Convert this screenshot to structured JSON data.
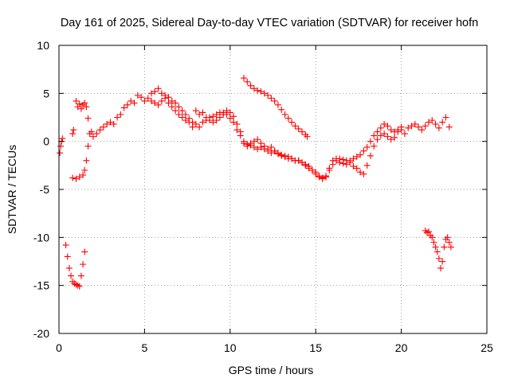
{
  "chart_data": {
    "type": "scatter",
    "title": "Day 161 of 2025, Sidereal Day-to-day VTEC variation (SDTVAR) for receiver hofn",
    "xlabel": "GPS time / hours",
    "ylabel": "SDTVAR / TECUs",
    "xlim": [
      0,
      25
    ],
    "ylim": [
      -20,
      10
    ],
    "x_ticks": [
      0,
      5,
      10,
      15,
      20,
      25
    ],
    "x_tick_labels": [
      "0",
      "5",
      "10",
      "15",
      "20",
      "25"
    ],
    "y_ticks": [
      -20,
      -15,
      -10,
      -5,
      0,
      5,
      10
    ],
    "y_tick_labels": [
      "-20",
      "-15",
      "-10",
      "-5",
      "0",
      "5",
      "10"
    ],
    "grid": true,
    "marker": "+",
    "color": "#ff0000",
    "series": [
      {
        "name": "early",
        "x": [
          0.05,
          0.1,
          0.15,
          0.2,
          0.8,
          0.85,
          1.0,
          1.1,
          1.2,
          1.3,
          1.4,
          1.5,
          1.6,
          1.7
        ],
        "y": [
          -1.2,
          -0.5,
          0.0,
          0.3,
          0.8,
          1.2,
          4.2,
          3.6,
          3.9,
          3.4,
          3.8,
          4.0,
          3.6,
          2.4
        ]
      },
      {
        "name": "dip1",
        "x": [
          0.4,
          0.5,
          0.6,
          0.7,
          0.8,
          0.9,
          1.0,
          1.1,
          1.2,
          1.3,
          1.4,
          1.5
        ],
        "y": [
          -10.8,
          -12.0,
          -13.2,
          -14.0,
          -14.6,
          -14.8,
          -14.9,
          -15.0,
          -15.1,
          -14.0,
          -12.8,
          -11.5
        ]
      },
      {
        "name": "rise1",
        "x": [
          0.8,
          1.0,
          1.2,
          1.4,
          1.5,
          1.6,
          1.7,
          1.8,
          1.9,
          2.0,
          2.2,
          2.4,
          2.6,
          2.8,
          3.0,
          3.2,
          3.4,
          3.6,
          3.8,
          4.0,
          4.2,
          4.4,
          4.6,
          4.8,
          5.0,
          5.2,
          5.4,
          5.6,
          5.8,
          6.0,
          6.2,
          6.4,
          6.6,
          6.8,
          7.0,
          7.2,
          7.4,
          7.6,
          7.8,
          8.0,
          8.2,
          8.4,
          8.6,
          8.8,
          9.0,
          9.2,
          9.4,
          9.6,
          9.8,
          10.0,
          10.2,
          10.4,
          10.6,
          10.8,
          11.0,
          11.2,
          11.4,
          11.6,
          11.8,
          12.0,
          12.2,
          12.4,
          12.6,
          12.8,
          13.0,
          13.2,
          13.4,
          13.6,
          13.8,
          14.0,
          14.2,
          14.4,
          14.6,
          14.8,
          15.0,
          15.2,
          15.4,
          15.6,
          15.8,
          16.0,
          16.2,
          16.4,
          16.6,
          16.8,
          17.0,
          17.2,
          17.4,
          17.6,
          17.8,
          18.0,
          18.2,
          18.4,
          18.6,
          18.8,
          19.0,
          19.2,
          19.4,
          19.6,
          19.8,
          20.0,
          20.2,
          20.4,
          20.6,
          20.8,
          21.0,
          21.2,
          21.4,
          21.6,
          21.8,
          22.0,
          22.2,
          22.4,
          22.6,
          22.8
        ],
        "y": [
          -3.8,
          -3.9,
          -3.7,
          -3.5,
          -3.0,
          -2.0,
          -0.5,
          0.8,
          1.0,
          0.5,
          0.8,
          1.2,
          1.5,
          1.8,
          2.0,
          1.8,
          2.5,
          2.8,
          3.5,
          3.8,
          4.2,
          4.0,
          4.8,
          4.6,
          4.2,
          4.5,
          5.0,
          5.2,
          5.5,
          5.0,
          4.8,
          4.6,
          4.2,
          4.0,
          3.6,
          3.2,
          2.8,
          2.4,
          2.0,
          3.2,
          2.8,
          3.0,
          2.5,
          2.2,
          2.0,
          2.2,
          2.5,
          2.8,
          3.2,
          3.0,
          2.6,
          1.8,
          1.0,
          0.0,
          -0.3,
          -0.2,
          0.0,
          0.2,
          -0.2,
          -0.5,
          -0.8,
          -0.6,
          -1.0,
          -1.2,
          -1.4,
          -1.5,
          -1.6,
          -1.8,
          -2.0,
          -2.0,
          -2.2,
          -2.4,
          -2.6,
          -3.0,
          -3.2,
          -3.6,
          -3.9,
          -3.7,
          -3.0,
          -2.4,
          -2.0,
          -2.2,
          -2.3,
          -2.4,
          -2.2,
          -2.6,
          -2.8,
          -3.2,
          -3.4,
          -2.5,
          -1.5,
          -0.5,
          0.2,
          0.6,
          0.8,
          0.5,
          0.2,
          0.4,
          1.0,
          1.2,
          0.8,
          1.4,
          1.6,
          1.8,
          1.5,
          1.2,
          1.6,
          2.0,
          2.2,
          1.8,
          1.4,
          2.0,
          2.5,
          1.5
        ]
      },
      {
        "name": "rise2",
        "x": [
          5.4,
          5.6,
          5.8,
          6.0,
          6.2,
          6.4,
          6.6,
          6.8,
          7.0,
          7.2,
          7.4,
          7.6,
          7.8,
          8.0,
          8.2,
          8.4,
          8.6,
          8.8,
          9.0,
          9.2,
          9.4,
          9.6,
          9.8,
          10.0,
          10.2,
          10.4,
          10.6,
          10.8,
          11.0,
          11.2,
          11.4,
          11.6,
          11.8,
          12.0,
          12.2,
          12.4,
          12.6,
          12.8,
          13.0,
          13.2,
          13.4,
          13.6,
          13.8,
          14.0,
          14.2,
          14.4,
          14.6,
          14.8,
          15.0,
          15.2,
          15.4,
          15.6,
          15.8,
          16.0,
          16.2,
          16.4,
          16.6,
          16.8,
          17.0,
          17.2,
          17.4,
          17.6,
          17.8,
          18.0,
          18.2,
          18.4,
          18.6,
          18.8,
          19.0,
          19.2,
          19.4,
          19.6,
          19.8,
          20.0
        ],
        "y": [
          4.2,
          4.0,
          3.8,
          4.2,
          4.5,
          4.0,
          3.6,
          3.2,
          2.8,
          2.5,
          2.2,
          2.0,
          1.5,
          1.8,
          1.5,
          2.0,
          2.2,
          2.5,
          2.6,
          2.8,
          3.0,
          3.0,
          2.8,
          2.4,
          2.0,
          1.2,
          0.6,
          -0.2,
          -0.5,
          -0.4,
          -0.6,
          -0.8,
          -0.6,
          -0.8,
          -1.0,
          -1.2,
          -1.0,
          -1.3,
          -1.5,
          -1.6,
          -1.8,
          -1.8,
          -2.0,
          -2.0,
          -2.2,
          -2.5,
          -2.8,
          -3.0,
          -3.4,
          -3.7,
          -3.8,
          -3.6,
          -2.8,
          -2.0,
          -1.8,
          -1.8,
          -1.9,
          -2.0,
          -2.0,
          -1.8,
          -1.6,
          -1.4,
          -1.0,
          -0.6,
          0.0,
          0.6,
          1.0,
          1.4,
          1.8,
          1.6,
          1.2,
          1.0,
          1.2,
          1.5
        ]
      },
      {
        "name": "high_arc",
        "x": [
          10.8,
          11.0,
          11.2,
          11.4,
          11.6,
          11.8,
          12.0,
          12.2,
          12.4,
          12.6,
          12.8,
          13.0,
          13.2,
          13.4,
          13.6,
          13.8,
          14.0,
          14.2,
          14.4,
          14.5
        ],
        "y": [
          6.6,
          6.2,
          5.8,
          5.5,
          5.3,
          5.2,
          5.0,
          4.8,
          4.5,
          4.2,
          3.8,
          3.3,
          2.8,
          2.4,
          2.0,
          1.6,
          1.3,
          1.0,
          0.7,
          0.5
        ]
      },
      {
        "name": "late_low",
        "x": [
          21.4,
          21.5,
          21.6,
          21.7,
          21.8,
          21.9,
          22.0,
          22.1,
          22.2,
          22.3,
          22.4,
          22.5,
          22.6,
          22.7,
          22.8,
          22.9
        ],
        "y": [
          -9.3,
          -9.5,
          -9.4,
          -9.8,
          -10.0,
          -10.5,
          -11.0,
          -11.5,
          -12.2,
          -13.2,
          -12.5,
          -11.0,
          -10.2,
          -10.0,
          -10.5,
          -11.0
        ]
      }
    ]
  }
}
